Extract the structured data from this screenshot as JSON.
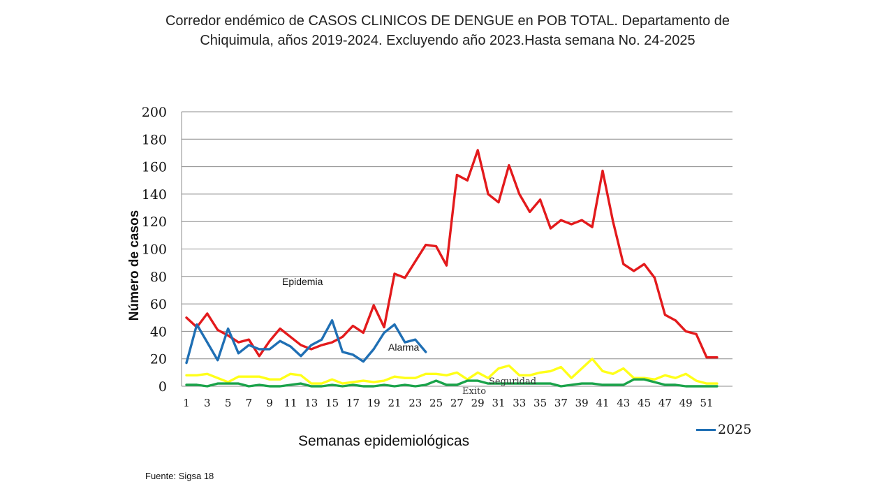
{
  "title": {
    "line1": "Corredor endémico de CASOS CLINICOS DE DENGUE en POB TOTAL. Departamento de",
    "line2": "Chiquimula, años 2019-2024. Excluyendo año 2023.Hasta semana No. 24-2025"
  },
  "source": "Fuente: Sigsa 18",
  "chart_data": {
    "type": "line",
    "xlabel": "Semanas epidemiológicas",
    "ylabel": "Número de casos",
    "ylim": [
      0,
      200
    ],
    "yticks": [
      0,
      20,
      40,
      60,
      80,
      100,
      120,
      140,
      160,
      180,
      200
    ],
    "xlim": [
      1,
      52
    ],
    "xticks": [
      1,
      3,
      5,
      7,
      9,
      11,
      13,
      15,
      17,
      19,
      21,
      23,
      25,
      27,
      29,
      31,
      33,
      35,
      37,
      39,
      41,
      43,
      45,
      47,
      49,
      51
    ],
    "grid": "horizontal",
    "legend_position": "bottom-right",
    "legend": [
      "2025"
    ],
    "zone_labels": [
      "Epidemia",
      "Alarma",
      "Seguridad",
      "Exito"
    ],
    "series": [
      {
        "color": "#e31a1c",
        "x": [
          1,
          2,
          3,
          4,
          5,
          6,
          7,
          8,
          9,
          10,
          11,
          12,
          13,
          14,
          15,
          16,
          17,
          18,
          19,
          20,
          21,
          22,
          23,
          24,
          25,
          26,
          27,
          28,
          29,
          30,
          31,
          32,
          33,
          34,
          35,
          36,
          37,
          38,
          39,
          40,
          41,
          42,
          43,
          44,
          45,
          46,
          47,
          48,
          49,
          50,
          51,
          52
        ],
        "values": [
          50,
          43,
          53,
          41,
          37,
          32,
          34,
          22,
          33,
          42,
          36,
          30,
          27,
          30,
          32,
          36,
          44,
          39,
          59,
          43,
          82,
          79,
          91,
          103,
          102,
          88,
          154,
          150,
          172,
          140,
          134,
          161,
          140,
          127,
          136,
          115,
          121,
          118,
          121,
          116,
          157,
          120,
          89,
          84,
          89,
          79,
          52,
          48,
          40,
          38,
          21,
          21
        ]
      },
      {
        "color": "#ffff19",
        "x": [
          1,
          2,
          3,
          4,
          5,
          6,
          7,
          8,
          9,
          10,
          11,
          12,
          13,
          14,
          15,
          16,
          17,
          18,
          19,
          20,
          21,
          22,
          23,
          24,
          25,
          26,
          27,
          28,
          29,
          30,
          31,
          32,
          33,
          34,
          35,
          36,
          37,
          38,
          39,
          40,
          41,
          42,
          43,
          44,
          45,
          46,
          47,
          48,
          49,
          50,
          51,
          52
        ],
        "values": [
          8,
          8,
          9,
          6,
          3,
          7,
          7,
          7,
          5,
          5,
          9,
          8,
          2,
          2,
          5,
          2,
          3,
          4,
          3,
          4,
          7,
          6,
          6,
          9,
          9,
          8,
          10,
          5,
          10,
          6,
          13,
          15,
          8,
          8,
          10,
          11,
          14,
          6,
          13,
          20,
          11,
          9,
          13,
          6,
          6,
          5,
          8,
          6,
          9,
          4,
          2,
          2
        ]
      },
      {
        "color": "#1aa34a",
        "x": [
          1,
          2,
          3,
          4,
          5,
          6,
          7,
          8,
          9,
          10,
          11,
          12,
          13,
          14,
          15,
          16,
          17,
          18,
          19,
          20,
          21,
          22,
          23,
          24,
          25,
          26,
          27,
          28,
          29,
          30,
          31,
          32,
          33,
          34,
          35,
          36,
          37,
          38,
          39,
          40,
          41,
          42,
          43,
          44,
          45,
          46,
          47,
          48,
          49,
          50,
          51,
          52
        ],
        "values": [
          1,
          1,
          0,
          2,
          2,
          2,
          0,
          1,
          0,
          0,
          1,
          2,
          0,
          0,
          1,
          0,
          1,
          0,
          0,
          1,
          0,
          1,
          0,
          1,
          4,
          1,
          1,
          4,
          4,
          2,
          2,
          2,
          2,
          2,
          2,
          2,
          0,
          1,
          2,
          2,
          1,
          1,
          1,
          5,
          5,
          3,
          1,
          1,
          0,
          0,
          0,
          0
        ]
      },
      {
        "name": "2025",
        "color": "#1f6fb4",
        "x": [
          1,
          2,
          3,
          4,
          5,
          6,
          7,
          8,
          9,
          10,
          11,
          12,
          13,
          14,
          15,
          16,
          17,
          18,
          19,
          20,
          21,
          22,
          23,
          24
        ],
        "values": [
          17,
          45,
          32,
          19,
          42,
          24,
          30,
          27,
          27,
          33,
          29,
          22,
          30,
          34,
          48,
          25,
          23,
          18,
          27,
          39,
          45,
          32,
          34,
          25
        ]
      }
    ]
  }
}
